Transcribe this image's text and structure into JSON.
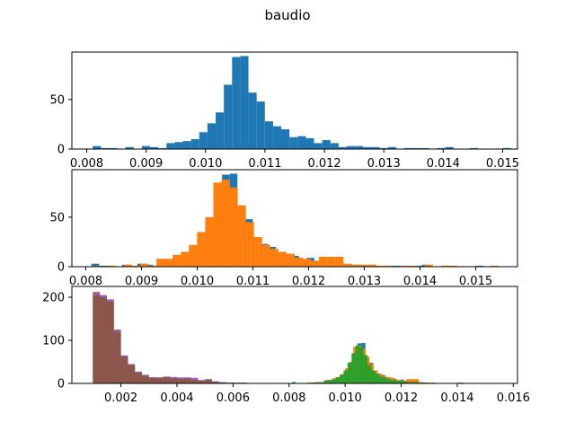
{
  "title": "baudio",
  "colors": {
    "C0": "#1f77b4",
    "C1": "#ff7f0e",
    "C2": "#2ca02c",
    "C3": "#d62728",
    "C4": "#9467bd",
    "C5": "#8c564b"
  },
  "chart_data": [
    {
      "type": "bar",
      "panel": "top",
      "title": "",
      "xlabel": "",
      "ylabel": "",
      "xlim": [
        0.00775,
        0.01525
      ],
      "ylim": [
        0,
        98
      ],
      "xticks": [
        0.008,
        0.009,
        0.01,
        0.011,
        0.012,
        0.013,
        0.014,
        0.015
      ],
      "xtick_labels": [
        "0.008",
        "0.009",
        "0.010",
        "0.011",
        "0.012",
        "0.013",
        "0.014",
        "0.015"
      ],
      "yticks": [
        0,
        50
      ],
      "ytick_labels": [
        "0",
        "50"
      ],
      "series": [
        {
          "color": "#1f77b4",
          "bin_start": 0.0081,
          "bin_width": 0.000138,
          "counts": [
            3,
            1,
            1,
            0,
            2,
            0,
            3,
            2,
            1,
            6,
            7,
            8,
            10,
            17,
            26,
            37,
            65,
            93,
            94,
            57,
            48,
            28,
            23,
            20,
            12,
            13,
            11,
            6,
            9,
            6,
            2,
            3,
            3,
            2,
            2,
            1,
            2,
            0,
            1,
            1,
            1,
            0,
            1,
            2,
            0,
            0,
            1,
            0,
            0,
            0,
            1
          ]
        }
      ]
    },
    {
      "type": "bar",
      "panel": "middle",
      "title": "",
      "xlabel": "",
      "ylabel": "",
      "xlim": [
        0.00775,
        0.01575
      ],
      "ylim": [
        0,
        98
      ],
      "xticks": [
        0.008,
        0.009,
        0.01,
        0.011,
        0.012,
        0.013,
        0.014,
        0.015
      ],
      "xtick_labels": [
        "0.008",
        "0.009",
        "0.010",
        "0.011",
        "0.012",
        "0.013",
        "0.014",
        "0.015"
      ],
      "yticks": [
        0,
        50
      ],
      "ytick_labels": [
        "0",
        "50"
      ],
      "series": [
        {
          "color": "#1f77b4",
          "bin_start": 0.0081,
          "bin_width": 0.000138,
          "counts": [
            3,
            1,
            1,
            0,
            2,
            0,
            3,
            2,
            1,
            6,
            7,
            8,
            10,
            17,
            26,
            37,
            65,
            93,
            94,
            57,
            48,
            28,
            23,
            20,
            12,
            13,
            11,
            6,
            9,
            6,
            2,
            3,
            3,
            2,
            2,
            1,
            2,
            0,
            1,
            1,
            1,
            0,
            1,
            2,
            0,
            0,
            1,
            0,
            0,
            0,
            1
          ]
        },
        {
          "color": "#ff7f0e",
          "bin_start": 0.0081,
          "bin_width": 0.000146,
          "counts": [
            1,
            0,
            1,
            0,
            2,
            1,
            3,
            1,
            8,
            8,
            12,
            15,
            22,
            35,
            50,
            85,
            88,
            80,
            62,
            45,
            30,
            22,
            18,
            15,
            13,
            9,
            8,
            6,
            10,
            10,
            10,
            3,
            2,
            2,
            2,
            1,
            1,
            0,
            1,
            1,
            0,
            2,
            0,
            1,
            1,
            0,
            0,
            0,
            0,
            1
          ]
        }
      ]
    },
    {
      "type": "bar",
      "panel": "bottom",
      "title": "",
      "xlabel": "",
      "ylabel": "",
      "xlim": [
        0.00025,
        0.01615
      ],
      "ylim": [
        0,
        225
      ],
      "xticks": [
        0.002,
        0.004,
        0.006,
        0.008,
        0.01,
        0.012,
        0.014,
        0.016
      ],
      "xtick_labels": [
        "0.002",
        "0.004",
        "0.006",
        "0.008",
        "0.010",
        "0.012",
        "0.014",
        "0.016"
      ],
      "yticks": [
        0,
        100,
        200
      ],
      "ytick_labels": [
        "0",
        "100",
        "200"
      ],
      "series": [
        {
          "color": "#d62728",
          "bin_start": 0.001,
          "bin_width": 0.00025,
          "counts": [
            212,
            200,
            110,
            60,
            40,
            28,
            18,
            15,
            14,
            14,
            12,
            10,
            8,
            7,
            5,
            4,
            3,
            2,
            1,
            1
          ]
        },
        {
          "color": "#9467bd",
          "bin_start": 0.001,
          "bin_width": 0.00025,
          "counts": [
            210,
            205,
            195,
            125,
            65,
            45,
            27,
            20,
            14,
            13,
            16,
            15,
            14,
            14,
            13,
            8,
            10,
            5,
            3,
            2,
            2,
            2,
            1,
            1,
            0,
            1
          ]
        },
        {
          "color": "#8c564b",
          "bin_start": 0.001,
          "bin_width": 0.00025,
          "counts": [
            205,
            200,
            190,
            120,
            62,
            43,
            26,
            18,
            13,
            12,
            14,
            12,
            10,
            12,
            8,
            6,
            9,
            4,
            2,
            1,
            1,
            1,
            0,
            1
          ]
        },
        {
          "color": "#1f77b4",
          "bin_start": 0.0081,
          "bin_width": 0.000138,
          "counts": [
            3,
            1,
            1,
            0,
            2,
            0,
            3,
            2,
            1,
            6,
            7,
            8,
            10,
            17,
            26,
            37,
            65,
            93,
            94,
            57,
            48,
            28,
            23,
            20,
            12,
            13,
            11,
            6,
            9,
            6,
            2,
            3,
            3,
            2,
            2,
            1,
            2,
            0,
            1,
            1,
            1,
            0,
            1,
            2,
            0,
            0,
            1,
            0,
            0,
            0,
            1
          ]
        },
        {
          "color": "#ff7f0e",
          "bin_start": 0.0081,
          "bin_width": 0.000146,
          "counts": [
            1,
            0,
            1,
            0,
            2,
            1,
            3,
            1,
            8,
            8,
            12,
            15,
            22,
            35,
            50,
            85,
            88,
            80,
            62,
            45,
            30,
            22,
            18,
            15,
            13,
            9,
            8,
            6,
            10,
            10,
            10,
            3,
            2,
            2,
            2,
            1,
            1,
            0,
            1,
            1,
            0,
            2,
            0,
            1,
            1,
            0,
            0,
            0,
            0,
            1
          ]
        },
        {
          "color": "#2ca02c",
          "bin_start": 0.0081,
          "bin_width": 0.000142,
          "counts": [
            1,
            0,
            1,
            1,
            1,
            2,
            2,
            3,
            6,
            8,
            10,
            14,
            20,
            30,
            48,
            70,
            88,
            85,
            66,
            42,
            30,
            22,
            16,
            14,
            10,
            8,
            6,
            6,
            5,
            3,
            4,
            3,
            2,
            2,
            1,
            1,
            1,
            0,
            0,
            1
          ]
        }
      ]
    }
  ]
}
